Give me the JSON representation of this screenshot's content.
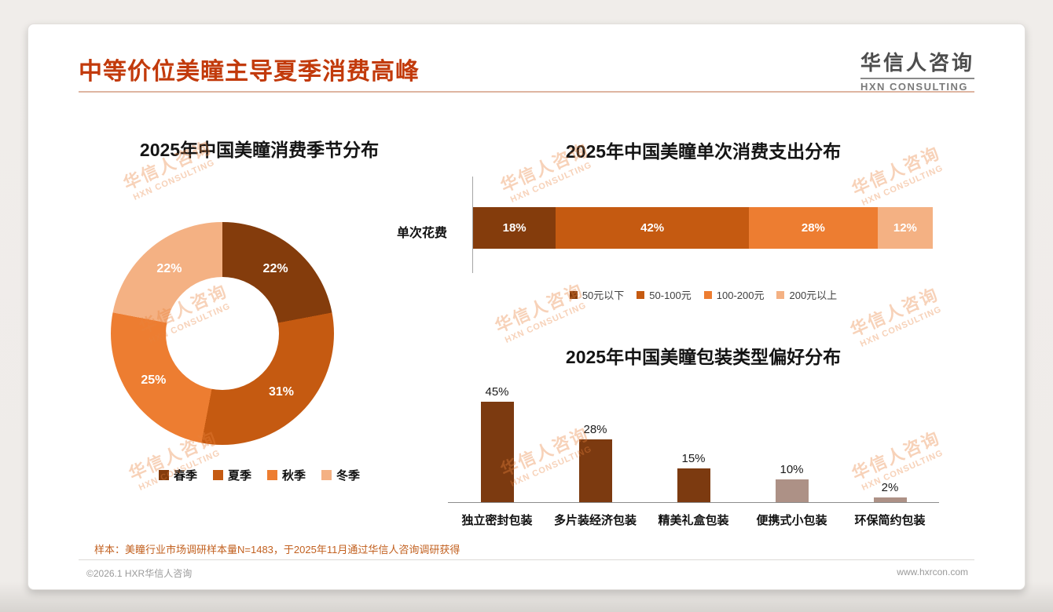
{
  "page": {
    "title": "中等价位美瞳主导夏季消费高峰",
    "logo": {
      "name": "华信人咨询",
      "sub": "HXN CONSULTING"
    },
    "watermark": {
      "line1": "华信人咨询",
      "line2": "HXN CONSULTING"
    },
    "footnote": "样本：美瞳行业市场调研样本量N=1483，于2025年11月通过华信人咨询调研获得",
    "footer_left": "©2026.1 HXR华信人咨询",
    "footer_right": "www.hxrcon.com"
  },
  "colors": {
    "accent_title": "#C23A0B",
    "palette_dark": "#843C0C",
    "palette_mid": "#C55A11",
    "palette_orange": "#ED7D31",
    "palette_light": "#F4B183",
    "bar_dark": "#7C3A10",
    "bar_taupe": "#AD9186"
  },
  "chart_data": [
    {
      "type": "pie",
      "donut": true,
      "title": "2025年中国美瞳消费季节分布",
      "labels": [
        "春季",
        "夏季",
        "秋季",
        "冬季"
      ],
      "values": [
        22,
        31,
        25,
        22
      ],
      "value_unit": "%",
      "colors": [
        "#843C0C",
        "#C55A11",
        "#ED7D31",
        "#F4B183"
      ],
      "legend_position": "bottom"
    },
    {
      "type": "bar",
      "subtype": "stacked-horizontal",
      "title": "2025年中国美瞳单次消费支出分布",
      "row_label": "单次花费",
      "series": [
        {
          "name": "50元以下",
          "value": 18
        },
        {
          "name": "50-100元",
          "value": 42
        },
        {
          "name": "100-200元",
          "value": 28
        },
        {
          "name": "200元以上",
          "value": 12
        }
      ],
      "value_unit": "%",
      "xlim": [
        0,
        100
      ],
      "colors": [
        "#843C0C",
        "#C55A11",
        "#ED7D31",
        "#F4B183"
      ],
      "legend_position": "bottom"
    },
    {
      "type": "bar",
      "title": "2025年中国美瞳包装类型偏好分布",
      "categories": [
        "独立密封包装",
        "多片装经济包装",
        "精美礼盒包装",
        "便携式小包装",
        "环保简约包装"
      ],
      "values": [
        45,
        28,
        15,
        10,
        2
      ],
      "value_unit": "%",
      "ylim": [
        0,
        50
      ],
      "grid": false,
      "colors": [
        "#7C3A10",
        "#7C3A10",
        "#7C3A10",
        "#AD9186",
        "#AD9186"
      ]
    }
  ]
}
